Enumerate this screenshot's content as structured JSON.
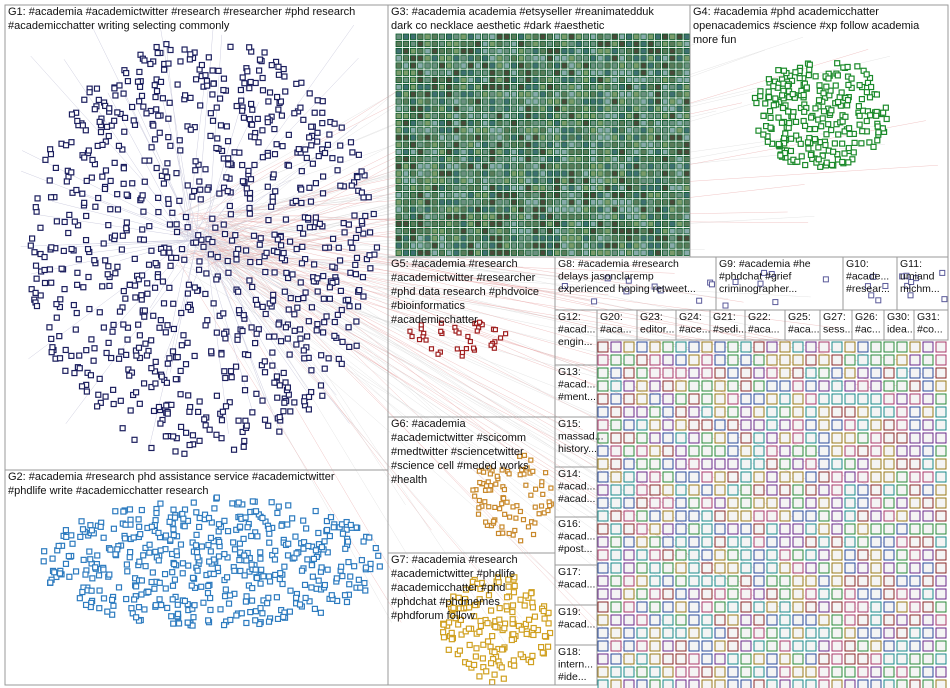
{
  "groups": [
    {
      "lines": [
        "G1: #academia #academictwitter #research #researcher #phd research",
        "#academicchatter writing selecting commonly"
      ]
    },
    {
      "lines": [
        "G2: #academia #research phd assistance service #academictwitter",
        "#phdlife write #academicchatter research"
      ]
    },
    {
      "lines": [
        "G3: #academia academia #etsyseller #reanimatedduk",
        "dark co necklace aesthetic #dark #aesthetic"
      ]
    },
    {
      "lines": [
        "G4: #academia #phd academicchatter",
        "openacademics #science #xp follow academia",
        "more fun"
      ]
    },
    {
      "lines": [
        "G5: #academia #research",
        "#academictwitter #researcher",
        "#phd data research #phdvoice",
        "#bioinformatics",
        "#academicchatter"
      ]
    },
    {
      "lines": [
        "G6: #academia",
        "#academictwitter #scicomm",
        "#medtwitter #sciencetwitter",
        "#science cell #meded works",
        "#health"
      ]
    },
    {
      "lines": [
        "G7: #academia #research",
        "#academictwitter #phdlife",
        "#academicchatter #phd",
        "#phdchat #phdmemes",
        "#phdforum follow"
      ]
    },
    {
      "lines": [
        "G8: #academia #research",
        "delays jasonclaremp",
        "experienced hoping retweet..."
      ]
    },
    {
      "lines": [
        "G9: #academia #he",
        "#phdchat #grief",
        "criminographer..."
      ]
    },
    {
      "lines": [
        "G10:",
        "#acade...",
        "#resear..."
      ]
    },
    {
      "lines": [
        "G11:",
        "umiand",
        "michm..."
      ]
    },
    {
      "lines": [
        "G12:",
        "#acad...",
        "engin..."
      ]
    },
    {
      "lines": [
        "G13:",
        "#acad...",
        "#ment..."
      ]
    },
    {
      "lines": [
        "G15:",
        "massad...",
        "history..."
      ]
    },
    {
      "lines": [
        "G14:",
        "#acad...",
        "#acad..."
      ]
    },
    {
      "lines": [
        "G16:",
        "#acad...",
        "#post..."
      ]
    },
    {
      "lines": [
        "G17:",
        "#acad..."
      ]
    },
    {
      "lines": [
        "G19:",
        "#acad..."
      ]
    },
    {
      "lines": [
        "G18:",
        "intern...",
        "#ide..."
      ]
    },
    {
      "lines": [
        "G20:",
        "#aca..."
      ]
    },
    {
      "lines": [
        "G23:",
        "editor..."
      ]
    },
    {
      "lines": [
        "G24:",
        "#ace..."
      ]
    },
    {
      "lines": [
        "G21:",
        "#sedi..."
      ]
    },
    {
      "lines": [
        "G22:",
        "#aca..."
      ]
    },
    {
      "lines": [
        "G25:",
        "#aca..."
      ]
    },
    {
      "lines": [
        "G27:",
        "sess..."
      ]
    },
    {
      "lines": [
        "G26:",
        "#ac..."
      ]
    },
    {
      "lines": [
        "G30:",
        "idea..."
      ]
    },
    {
      "lines": [
        "G31:",
        "#co..."
      ]
    }
  ]
}
